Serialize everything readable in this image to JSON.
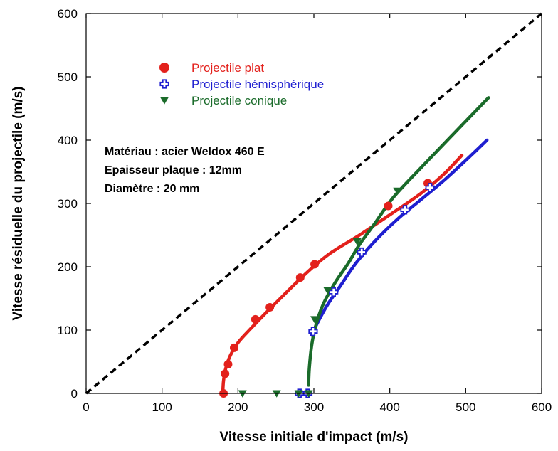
{
  "chart_data": {
    "type": "scatter",
    "xlabel": "Vitesse initiale d'impact  (m/s)",
    "ylabel": "Vitesse résiduelle du projectile (m/s)",
    "xlim": [
      0,
      600
    ],
    "ylim": [
      0,
      600
    ],
    "xticks": [
      "0",
      "100",
      "200",
      "300",
      "400",
      "500",
      "600"
    ],
    "yticks": [
      "0",
      "100",
      "200",
      "300",
      "400",
      "500",
      "600"
    ],
    "grid": false,
    "legend_position": "top-left",
    "annotations": [
      "Matériau : acier Weldox 460 E",
      "Epaisseur plaque : 12mm",
      "Diamètre : 20 mm"
    ],
    "reference_line": {
      "style": "dashed",
      "color": "#000000",
      "x": [
        0,
        600
      ],
      "y": [
        0,
        600
      ]
    },
    "series": [
      {
        "name": "Projectile plat",
        "color": "#e3211c",
        "marker": "circle",
        "points": [
          [
            181,
            0
          ],
          [
            183,
            31
          ],
          [
            187,
            46
          ],
          [
            195,
            72
          ],
          [
            223,
            117
          ],
          [
            242,
            136
          ],
          [
            282,
            183
          ],
          [
            301,
            204
          ],
          [
            398,
            296
          ],
          [
            450,
            332
          ]
        ],
        "curve": [
          [
            180,
            0
          ],
          [
            181,
            20
          ],
          [
            184,
            40
          ],
          [
            190,
            60
          ],
          [
            200,
            80
          ],
          [
            215,
            100
          ],
          [
            235,
            125
          ],
          [
            260,
            155
          ],
          [
            290,
            190
          ],
          [
            320,
            220
          ],
          [
            360,
            250
          ],
          [
            400,
            282
          ],
          [
            440,
            315
          ],
          [
            470,
            345
          ],
          [
            495,
            376
          ]
        ]
      },
      {
        "name": "Projectile hémisphérique",
        "color": "#1f1fd0",
        "marker": "plus",
        "points": [
          [
            281,
            0
          ],
          [
            292,
            0
          ],
          [
            299,
            98
          ],
          [
            326,
            160
          ],
          [
            363,
            223
          ],
          [
            420,
            290
          ],
          [
            453,
            325
          ]
        ],
        "curve": [
          [
            297,
            92
          ],
          [
            305,
            112
          ],
          [
            318,
            140
          ],
          [
            335,
            170
          ],
          [
            355,
            205
          ],
          [
            380,
            240
          ],
          [
            410,
            275
          ],
          [
            440,
            305
          ],
          [
            470,
            335
          ],
          [
            500,
            368
          ],
          [
            528,
            400
          ]
        ]
      },
      {
        "name": "Projectile conique",
        "color": "#1a6b2a",
        "marker": "triangle-down",
        "points": [
          [
            206,
            0
          ],
          [
            251,
            0
          ],
          [
            280,
            0
          ],
          [
            293,
            0
          ],
          [
            301,
            117
          ],
          [
            318,
            163
          ],
          [
            357,
            240
          ],
          [
            410,
            320
          ]
        ],
        "curve": [
          [
            293,
            13
          ],
          [
            294,
            40
          ],
          [
            297,
            75
          ],
          [
            302,
            105
          ],
          [
            312,
            140
          ],
          [
            328,
            175
          ],
          [
            345,
            205
          ],
          [
            360,
            235
          ],
          [
            380,
            268
          ],
          [
            405,
            310
          ],
          [
            440,
            355
          ],
          [
            480,
            405
          ],
          [
            530,
            467
          ]
        ]
      }
    ]
  }
}
